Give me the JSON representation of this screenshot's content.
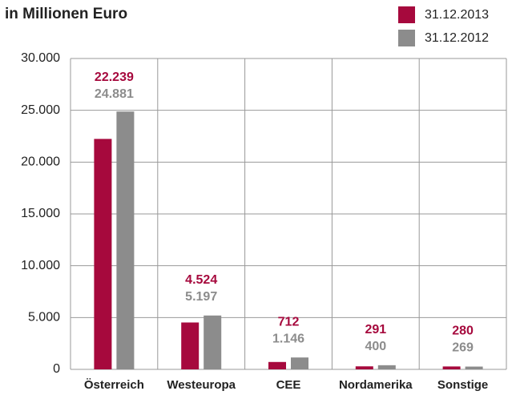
{
  "chart_data": {
    "type": "bar",
    "title": "in Millionen Euro",
    "categories": [
      "Österreich",
      "Westeuropa",
      "CEE",
      "Nordamerika",
      "Sonstige"
    ],
    "series": [
      {
        "name": "31.12.2013",
        "color": "#a6093d",
        "values": [
          22239,
          4524,
          712,
          291,
          280
        ],
        "value_labels": [
          "22.239",
          "4.524",
          "712",
          "291",
          "280"
        ]
      },
      {
        "name": "31.12.2012",
        "color": "#8c8c8c",
        "values": [
          24881,
          5197,
          1146,
          400,
          269
        ],
        "value_labels": [
          "24.881",
          "5.197",
          "1.146",
          "400",
          "269"
        ]
      }
    ],
    "ylim": [
      0,
      30000
    ],
    "yticks": [
      0,
      {
        "value": 5000,
        "label": "5.000"
      },
      {
        "value": 10000,
        "label": "10.000"
      },
      {
        "value": 15000,
        "label": "15.000"
      },
      {
        "value": 20000,
        "label": "20.000"
      },
      {
        "value": 25000,
        "label": "25.000"
      },
      {
        "value": 30000,
        "label": "30.000"
      }
    ],
    "grid": true,
    "legend": "top-right"
  }
}
